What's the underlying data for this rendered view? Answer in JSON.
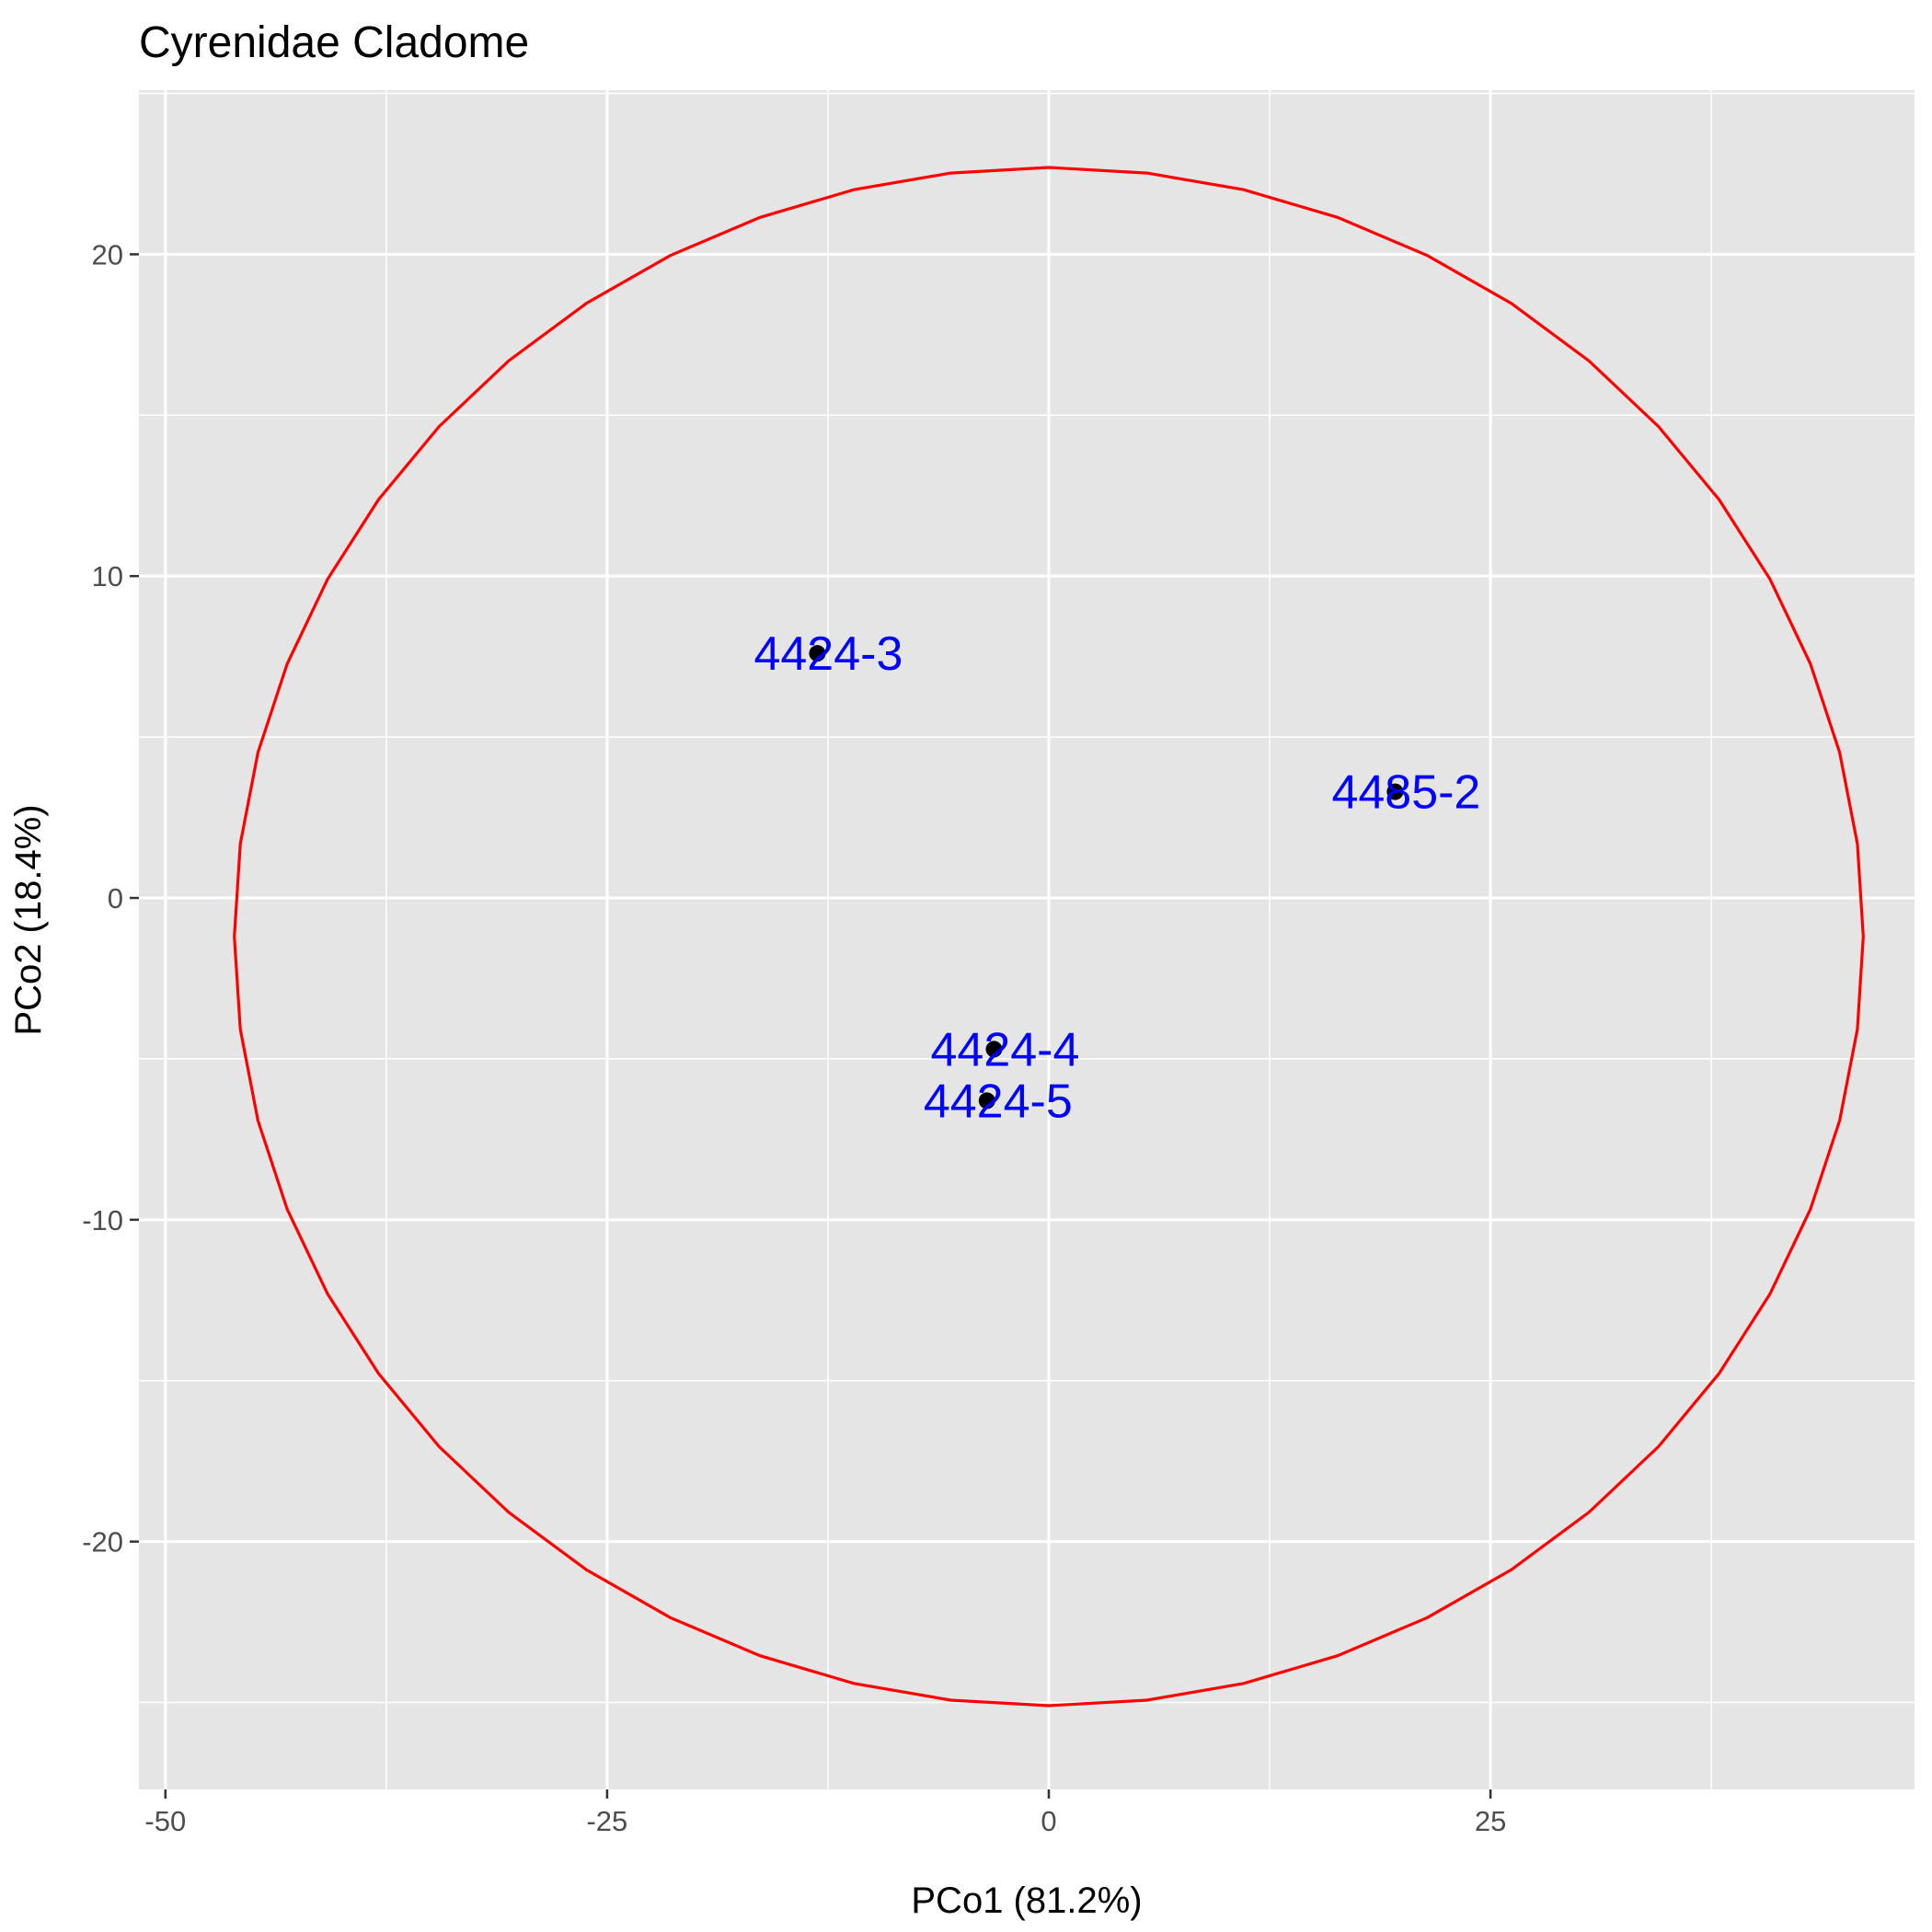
{
  "chart_data": {
    "type": "scatter",
    "title": "Cyrenidae Cladome",
    "xlabel": "PCo1 (81.2%)",
    "ylabel": "PCo2 (18.4%)",
    "xlim": [
      -51.5,
      49
    ],
    "ylim": [
      -27.7,
      25.1
    ],
    "xticks": [
      {
        "value": -50,
        "label": "-50"
      },
      {
        "value": -25,
        "label": "-25"
      },
      {
        "value": 0,
        "label": "0"
      },
      {
        "value": 25,
        "label": "25"
      }
    ],
    "yticks": [
      {
        "value": -20,
        "label": "-20"
      },
      {
        "value": -10,
        "label": "-10"
      },
      {
        "value": 0,
        "label": "0"
      },
      {
        "value": 10,
        "label": "10"
      },
      {
        "value": 20,
        "label": "20"
      }
    ],
    "grid": true,
    "points": [
      {
        "label": "4424-3",
        "x": -13.1,
        "y": 7.6
      },
      {
        "label": "4485-2",
        "x": 19.6,
        "y": 3.3
      },
      {
        "label": "4424-4",
        "x": -3.1,
        "y": -4.7
      },
      {
        "label": "4424-5",
        "x": -3.5,
        "y": -6.3
      }
    ],
    "ellipse": {
      "cx": 0,
      "cy": -1.2,
      "rx": 46.1,
      "ry": 23.9
    },
    "colors": {
      "panel": "#e5e5e5",
      "grid": "#ffffff",
      "ellipse": "#ff0000",
      "point": "#000000",
      "label": "#0000ff"
    }
  }
}
